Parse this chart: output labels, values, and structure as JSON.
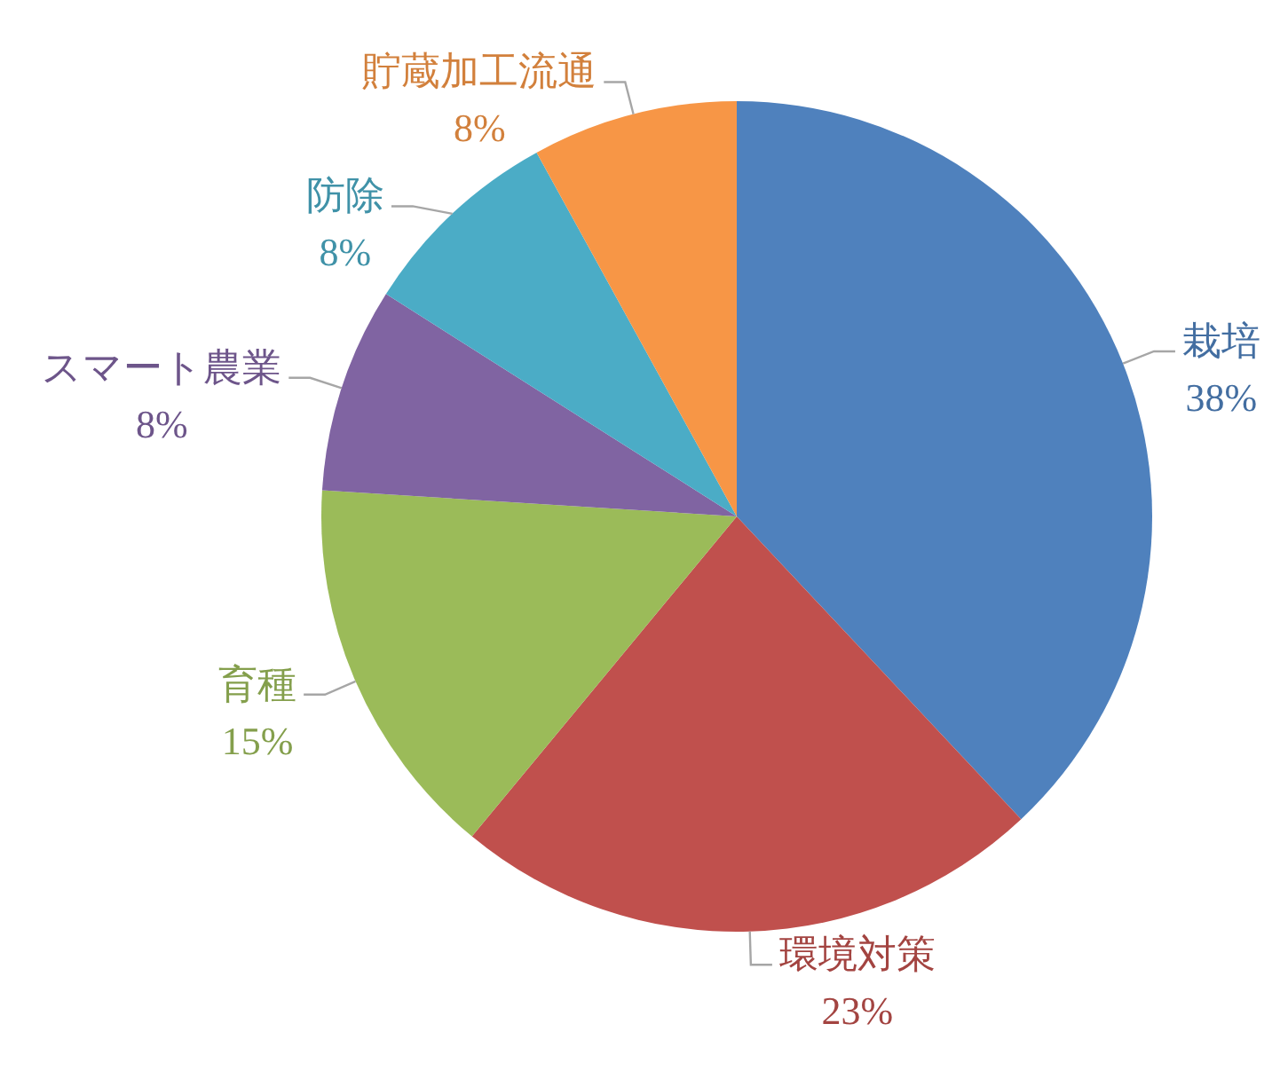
{
  "chart_data": {
    "type": "pie",
    "categories": [
      "栽培",
      "環境対策",
      "育種",
      "スマート農業",
      "防除",
      "貯蔵加工流通"
    ],
    "values": [
      38,
      23,
      15,
      8,
      8,
      8
    ],
    "value_labels": [
      "38%",
      "23%",
      "15%",
      "8%",
      "8%",
      "8%"
    ],
    "colors": [
      "#4f81bd",
      "#c0504d",
      "#9bbb59",
      "#8064a2",
      "#4bacc6",
      "#f79646"
    ]
  }
}
